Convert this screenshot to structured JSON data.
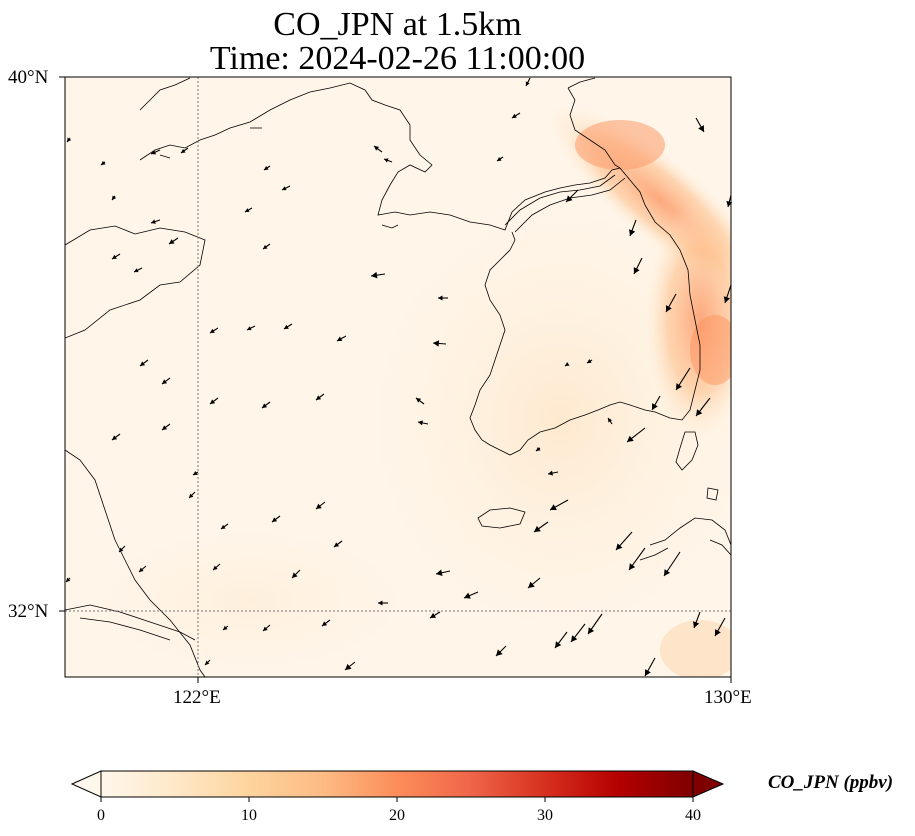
{
  "title": {
    "line1": "CO_JPN at 1.5km",
    "line2": "Time: 2024-02-26 11:00:00"
  },
  "axes": {
    "lat_ticks": [
      "40°N",
      "32°N"
    ],
    "lon_ticks": [
      "122°E",
      "130°E"
    ],
    "extent": {
      "lon_min": 120,
      "lon_max": 130,
      "lat_min": 31,
      "lat_max": 40
    },
    "gridlines": "dotted at 122°E and 32°N"
  },
  "colorbar": {
    "label": "CO_JPN (ppbv)",
    "ticks": [
      "0",
      "10",
      "20",
      "30",
      "40"
    ],
    "range": [
      0,
      40
    ],
    "colormap": "OrRd",
    "colors": [
      "#fff7ec",
      "#fee8c8",
      "#fdd49e",
      "#fdbb84",
      "#fc8d59",
      "#ef6548",
      "#d7301f",
      "#b30000",
      "#7f0000"
    ],
    "extend": "both"
  },
  "field": {
    "plume_region": "Japan Sea / east of Korean Peninsula",
    "max_value_ppbv": 15,
    "background_ppbv": 1
  }
}
